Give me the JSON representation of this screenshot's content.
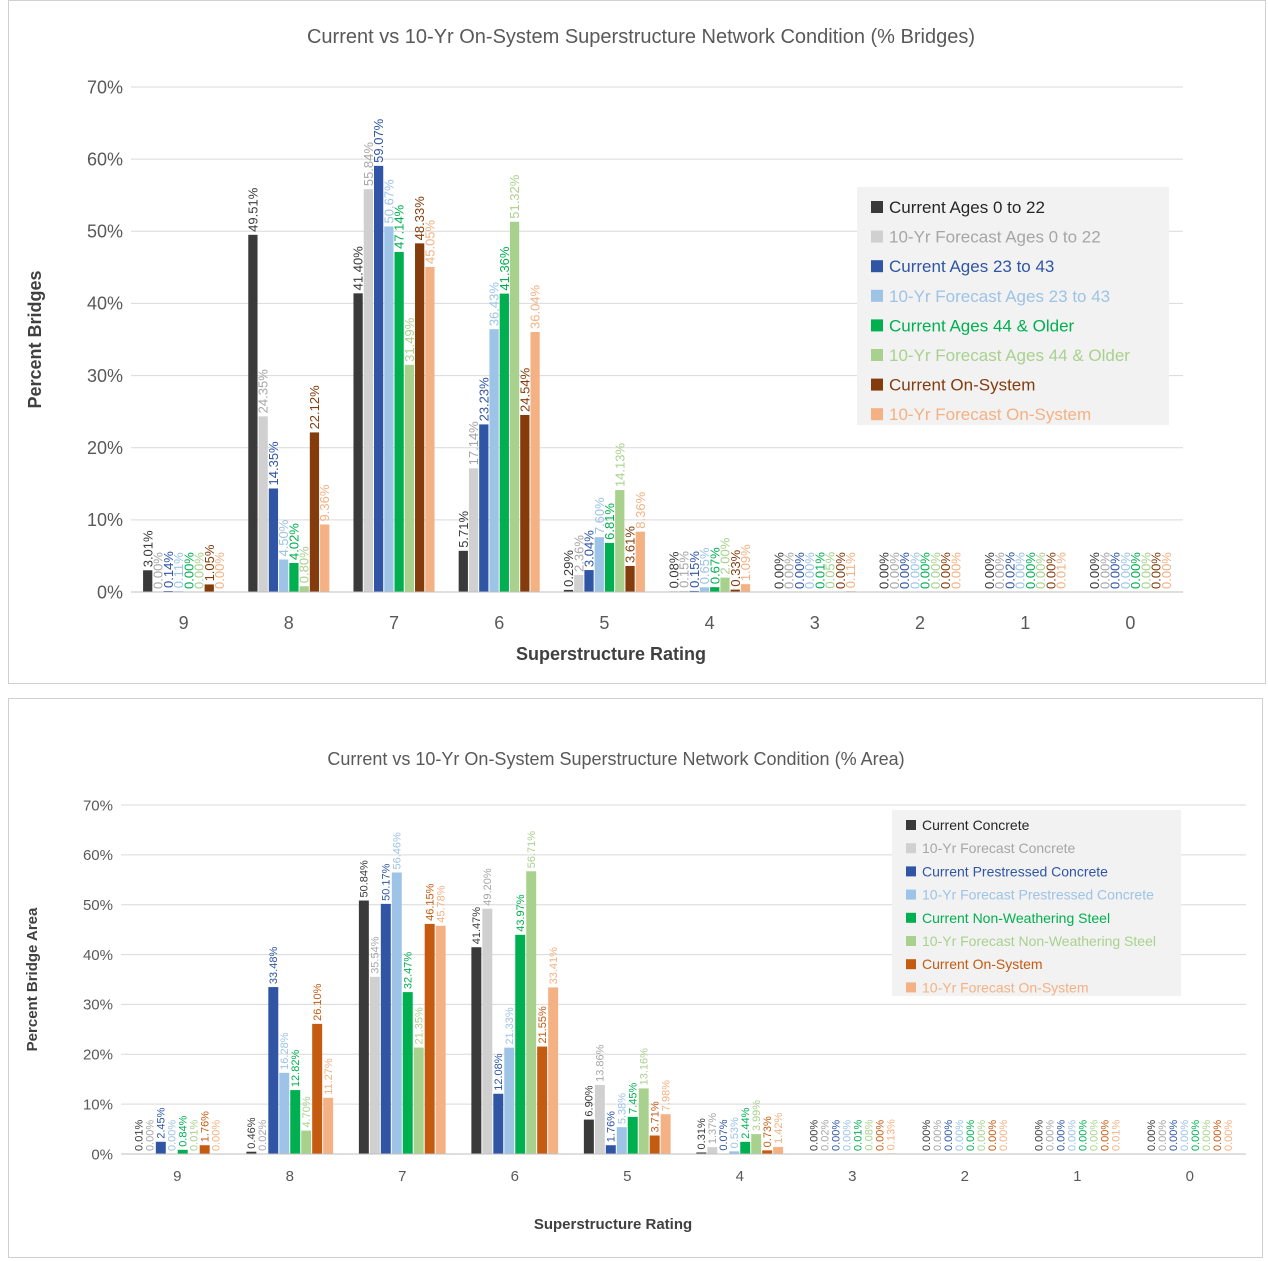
{
  "chart_data": [
    {
      "type": "bar",
      "title": "Current vs 10-Yr On-System Superstructure Network Condition (%  Bridges)",
      "xlabel": "Superstructure Rating",
      "ylabel": "Percent Bridges",
      "ylim": [
        0,
        70
      ],
      "yticks": [
        "0%",
        "10%",
        "20%",
        "30%",
        "40%",
        "50%",
        "60%",
        "70%"
      ],
      "grid": true,
      "legend_position": "right",
      "categories": [
        "9",
        "8",
        "7",
        "6",
        "5",
        "4",
        "3",
        "2",
        "1",
        "0"
      ],
      "series": [
        {
          "name": "Current Ages 0 to 22",
          "color": "#3a3a3a",
          "values": [
            3.01,
            49.51,
            41.4,
            5.71,
            0.29,
            0.08,
            0.0,
            0.0,
            0.0,
            0.0
          ],
          "labels": [
            "3.01%",
            "49.51%",
            "41.40%",
            "5.71%",
            "0.29%",
            "0.08%",
            "0.00%",
            "0.00%",
            "0.00%",
            "0.00%"
          ]
        },
        {
          "name": "10-Yr Forecast Ages 0 to 22",
          "color": "#d0d0d0",
          "values": [
            0.0,
            24.35,
            55.84,
            17.14,
            2.36,
            0.15,
            0.0,
            0.0,
            0.0,
            0.0
          ],
          "labels": [
            "0.00%",
            "24.35%",
            "55.84%",
            "17.14%",
            "2.36%",
            "0.15%",
            "0.00%",
            "0.00%",
            "0.00%",
            "0.00%"
          ]
        },
        {
          "name": "Current Ages 23 to 43",
          "color": "#2f55a4",
          "values": [
            0.14,
            14.35,
            59.07,
            23.23,
            3.04,
            0.15,
            0.0,
            0.0,
            0.02,
            0.0
          ],
          "labels": [
            "0.14%",
            "14.35%",
            "59.07%",
            "23.23%",
            "3.04%",
            "0.15%",
            "0.00%",
            "0.00%",
            "0.02%",
            "0.00%"
          ]
        },
        {
          "name": "10-Yr Forecast Ages 23 to 43",
          "color": "#9dc3e6",
          "values": [
            0.11,
            4.5,
            50.67,
            36.43,
            7.6,
            0.65,
            0.0,
            0.0,
            0.0,
            0.0
          ],
          "labels": [
            "0.11%",
            "4.50%",
            "50.67%",
            "36.43%",
            "7.60%",
            "0.65%",
            "0.00%",
            "0.00%",
            "0.00%",
            "0.00%"
          ]
        },
        {
          "name": "Current Ages 44 & Older",
          "color": "#00b050",
          "values": [
            0.0,
            4.02,
            47.14,
            41.36,
            6.81,
            0.67,
            0.01,
            0.0,
            0.0,
            0.0
          ],
          "labels": [
            "0.00%",
            "4.02%",
            "47.14%",
            "41.36%",
            "6.81%",
            "0.67%",
            "0.01%",
            "0.00%",
            "0.00%",
            "0.00%"
          ]
        },
        {
          "name": "10-Yr Forecast Ages 44 & Older",
          "color": "#a9d18e",
          "values": [
            0.0,
            0.8,
            31.49,
            51.32,
            14.13,
            2.0,
            0.05,
            0.0,
            0.0,
            0.0
          ],
          "labels": [
            "0.00%",
            "0.80%",
            "31.49%",
            "51.32%",
            "14.13%",
            "2.00%",
            "0.05%",
            "0.00%",
            "0.00%",
            "0.00%"
          ]
        },
        {
          "name": "Current On-System",
          "color": "#843c0c",
          "values": [
            1.05,
            22.12,
            48.33,
            24.54,
            3.61,
            0.33,
            0.0,
            0.0,
            0.0,
            0.0
          ],
          "labels": [
            "1.05%",
            "22.12%",
            "48.33%",
            "24.54%",
            "3.61%",
            "0.33%",
            "0.00%",
            "0.00%",
            "0.00%",
            "0.00%"
          ]
        },
        {
          "name": "10-Yr Forecast On-System",
          "color": "#f4b183",
          "values": [
            0.0,
            9.36,
            45.05,
            36.04,
            8.36,
            1.09,
            0.11,
            0.0,
            0.01,
            0.0
          ],
          "labels": [
            "0.00%",
            "9.36%",
            "45.05%",
            "36.04%",
            "8.36%",
            "1.09%",
            "0.11%",
            "0.00%",
            "0.01%",
            "0.00%"
          ]
        }
      ]
    },
    {
      "type": "bar",
      "title": "Current vs 10-Yr On-System Superstructure Network Condition (%  Area)",
      "xlabel": "Superstructure Rating",
      "ylabel": "Percent Bridge Area",
      "ylim": [
        0,
        70
      ],
      "yticks": [
        "0%",
        "10%",
        "20%",
        "30%",
        "40%",
        "50%",
        "60%",
        "70%"
      ],
      "grid": true,
      "legend_position": "right",
      "categories": [
        "9",
        "8",
        "7",
        "6",
        "5",
        "4",
        "3",
        "2",
        "1",
        "0"
      ],
      "series": [
        {
          "name": "Current Concrete",
          "color": "#3a3a3a",
          "values": [
            0.01,
            0.46,
            50.84,
            41.47,
            6.9,
            0.31,
            0.0,
            0.0,
            0.0,
            0.0
          ],
          "labels": [
            "0.01%",
            "0.46%",
            "50.84%",
            "41.47%",
            "6.90%",
            "0.31%",
            "0.00%",
            "0.00%",
            "0.00%",
            "0.00%"
          ]
        },
        {
          "name": "10-Yr Forecast Concrete",
          "color": "#d0d0d0",
          "values": [
            0.0,
            0.02,
            35.54,
            49.2,
            13.86,
            1.37,
            0.02,
            0.0,
            0.0,
            0.0
          ],
          "labels": [
            "0.00%",
            "0.02%",
            "35.54%",
            "49.20%",
            "13.86%",
            "1.37%",
            "0.02%",
            "0.00%",
            "0.00%",
            "0.00%"
          ]
        },
        {
          "name": "Current Prestressed Concrete",
          "color": "#2f55a4",
          "values": [
            2.45,
            33.48,
            50.17,
            12.08,
            1.76,
            0.07,
            0.0,
            0.0,
            0.0,
            0.0
          ],
          "labels": [
            "2.45%",
            "33.48%",
            "50.17%",
            "12.08%",
            "1.76%",
            "0.07%",
            "0.00%",
            "0.00%",
            "0.00%",
            "0.00%"
          ]
        },
        {
          "name": "10-Yr Forecast Prestressed Concrete",
          "color": "#9dc3e6",
          "values": [
            0.0,
            16.28,
            56.46,
            21.33,
            5.38,
            0.53,
            0.0,
            0.0,
            0.0,
            0.0
          ],
          "labels": [
            "0.00%",
            "16.28%",
            "56.46%",
            "21.33%",
            "5.38%",
            "0.53%",
            "0.00%",
            "0.00%",
            "0.00%",
            "0.00%"
          ]
        },
        {
          "name": "Current Non-Weathering Steel",
          "color": "#00b050",
          "values": [
            0.84,
            12.82,
            32.47,
            43.97,
            7.45,
            2.44,
            0.01,
            0.0,
            0.0,
            0.0
          ],
          "labels": [
            "0.84%",
            "12.82%",
            "32.47%",
            "43.97%",
            "7.45%",
            "2.44%",
            "0.01%",
            "0.00%",
            "0.00%",
            "0.00%"
          ]
        },
        {
          "name": "10-Yr Forecast Non-Weathering Steel",
          "color": "#a9d18e",
          "values": [
            0.01,
            4.7,
            21.35,
            56.71,
            13.16,
            3.99,
            0.08,
            0.0,
            0.0,
            0.0
          ],
          "labels": [
            "0.01%",
            "4.70%",
            "21.35%",
            "56.71%",
            "13.16%",
            "3.99%",
            "0.08%",
            "0.00%",
            "0.00%",
            "0.00%"
          ]
        },
        {
          "name": "Current On-System",
          "color": "#c55a11",
          "values": [
            1.76,
            26.1,
            46.15,
            21.55,
            3.71,
            0.73,
            0.0,
            0.0,
            0.0,
            0.0
          ],
          "labels": [
            "1.76%",
            "26.10%",
            "46.15%",
            "21.55%",
            "3.71%",
            "0.73%",
            "0.00%",
            "0.00%",
            "0.00%",
            "0.00%"
          ]
        },
        {
          "name": "10-Yr Forecast On-System",
          "color": "#f4b183",
          "values": [
            0.0,
            11.27,
            45.78,
            33.41,
            7.98,
            1.42,
            0.13,
            0.0,
            0.01,
            0.0
          ],
          "labels": [
            "0.00%",
            "11.27%",
            "45.78%",
            "33.41%",
            "7.98%",
            "1.42%",
            "0.13%",
            "0.00%",
            "0.01%",
            "0.00%"
          ]
        }
      ]
    }
  ]
}
